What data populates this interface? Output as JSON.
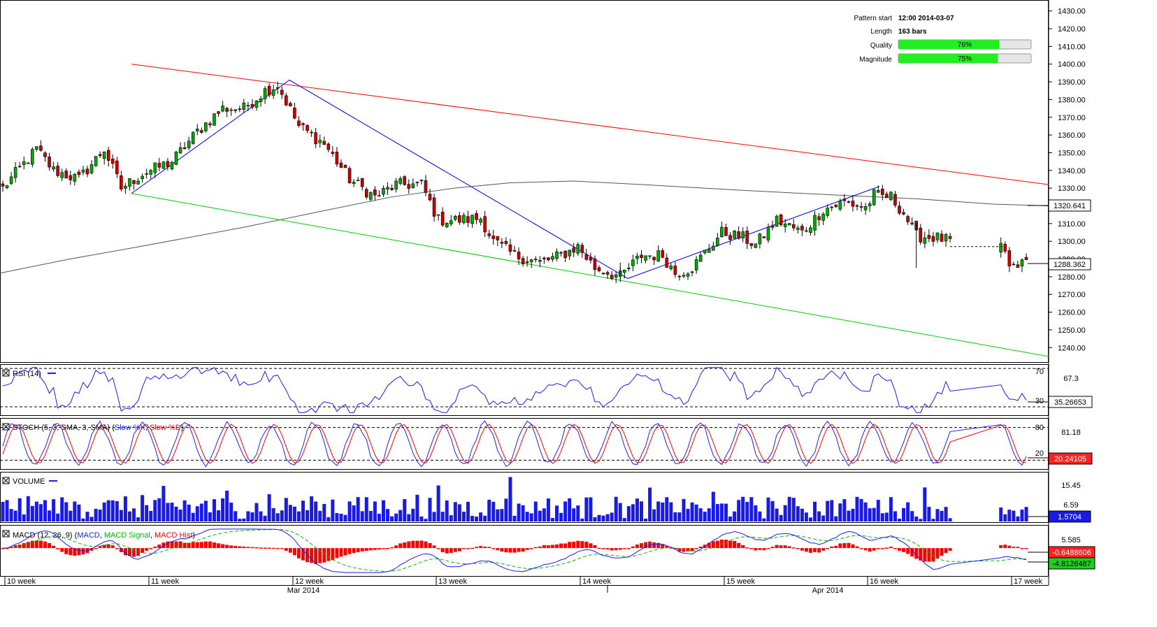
{
  "info": {
    "pattern_start_label": "Pattern start",
    "pattern_start_value": "12:00 2014-03-07",
    "length_label": "Length",
    "length_value": "163 bars",
    "quality_label": "Quality",
    "quality_value": "76%",
    "quality_fraction": 0.76,
    "magnitude_label": "Magnitude",
    "magnitude_value": "75%",
    "magnitude_fraction": 0.75
  },
  "colors": {
    "up_candle": "#00aa00",
    "down_candle": "#cc0000",
    "upper_trend": "#ff0000",
    "lower_trend": "#00cc00",
    "zigzag": "#0000ff",
    "sma": "#555555",
    "rsi_line": "#1a1aff",
    "stoch_k": "#2020ff",
    "stoch_d": "#ff0000",
    "volume": "#1a1ae6",
    "macd_line": "#1a1aff",
    "macd_signal": "#00bb00",
    "macd_hist": "#ff0000",
    "bar_fill": "#22ee22"
  },
  "chart_data": [
    {
      "type": "candlestick",
      "panel": "price",
      "ylim": [
        1233,
        1435
      ],
      "y_ticks": [
        "1430.00",
        "1420.00",
        "1410.00",
        "1400.00",
        "1390.00",
        "1380.00",
        "1370.00",
        "1360.00",
        "1350.00",
        "1340.00",
        "1330.00",
        "1320.00",
        "1310.00",
        "1300.00",
        "1290.00",
        "1280.00",
        "1270.00",
        "1260.00",
        "1250.00",
        "1240.00"
      ],
      "x_ticks": [
        "10 week",
        "11 week",
        "12 week",
        "13 week",
        "14 week",
        "15 week",
        "16 week",
        "17 week"
      ],
      "x_month_labels": [
        "Mar 2014",
        "Apr 2014"
      ],
      "price_tags": [
        "1320.641",
        "1288.362"
      ],
      "anchors": [
        [
          0,
          1330
        ],
        [
          8,
          1352
        ],
        [
          12,
          1340
        ],
        [
          18,
          1335
        ],
        [
          24,
          1352
        ],
        [
          28,
          1330
        ],
        [
          33,
          1338
        ],
        [
          40,
          1345
        ],
        [
          46,
          1362
        ],
        [
          52,
          1375
        ],
        [
          57,
          1375
        ],
        [
          62,
          1385
        ],
        [
          65,
          1388
        ],
        [
          70,
          1365
        ],
        [
          76,
          1355
        ],
        [
          82,
          1335
        ],
        [
          88,
          1325
        ],
        [
          93,
          1332
        ],
        [
          99,
          1332
        ],
        [
          103,
          1312
        ],
        [
          108,
          1312
        ],
        [
          113,
          1313
        ],
        [
          116,
          1300
        ],
        [
          121,
          1292
        ],
        [
          127,
          1288
        ],
        [
          132,
          1292
        ],
        [
          136,
          1297
        ],
        [
          140,
          1285
        ],
        [
          146,
          1280
        ],
        [
          151,
          1292
        ],
        [
          156,
          1292
        ],
        [
          159,
          1282
        ],
        [
          163,
          1285
        ],
        [
          170,
          1305
        ],
        [
          175,
          1302
        ],
        [
          178,
          1298
        ],
        [
          183,
          1312
        ],
        [
          189,
          1305
        ],
        [
          194,
          1318
        ],
        [
          199,
          1322
        ],
        [
          204,
          1319
        ],
        [
          206,
          1326
        ],
        [
          210,
          1325
        ],
        [
          213,
          1316
        ],
        [
          216,
          1303
        ],
        [
          221,
          1302
        ],
        [
          224,
          1300
        ],
        [
          229,
          1297
        ],
        [
          236,
          1296
        ],
        [
          239,
          1286
        ],
        [
          242,
          1288
        ]
      ],
      "upper_trend": [
        [
          1400,
          188
        ],
        [
          1332,
          1500
        ]
      ],
      "lower_trend": [
        [
          1327,
          188
        ],
        [
          1235,
          1500
        ]
      ],
      "zigzag": [
        [
          1327,
          188
        ],
        [
          1391,
          414
        ],
        [
          1279,
          898
        ],
        [
          1331,
          1258
        ]
      ],
      "sma": [
        [
          1282,
          0
        ],
        [
          1290,
          100
        ],
        [
          1297,
          200
        ],
        [
          1308,
          350
        ],
        [
          1317,
          460
        ],
        [
          1325,
          560
        ],
        [
          1330,
          650
        ],
        [
          1333,
          730
        ],
        [
          1334,
          820
        ],
        [
          1332,
          920
        ],
        [
          1329,
          1050
        ],
        [
          1326,
          1200
        ],
        [
          1324,
          1310
        ],
        [
          1321,
          1420
        ],
        [
          1320,
          1500
        ]
      ]
    },
    {
      "type": "line",
      "panel": "rsi",
      "legend": "RSI (14)",
      "y_tick_labels": [
        "70",
        "67.3",
        "30"
      ],
      "current_value": "35.26653",
      "ylim": [
        22,
        73
      ],
      "levels": [
        70,
        30
      ]
    },
    {
      "type": "line",
      "panel": "stochastic",
      "legend_prefix": "STOCH (5, 3, SMA, 3, SMA)",
      "series": [
        {
          "name": "Slow %K"
        },
        {
          "name": "Slow %D"
        }
      ],
      "y_tick_labels": [
        "80",
        "81.18",
        "20"
      ],
      "current_value": "20.24105",
      "ylim": [
        5,
        95
      ],
      "levels": [
        80,
        20
      ]
    },
    {
      "type": "bar",
      "panel": "volume",
      "legend": "VOLUME",
      "y_tick_labels": [
        "15.45",
        "6.59"
      ],
      "current_value": "1.5704",
      "ylim": [
        0,
        19
      ]
    },
    {
      "type": "line",
      "panel": "macd",
      "legend_prefix": "MACD (12, 26, 9)",
      "series": [
        {
          "name": "MACD"
        },
        {
          "name": "MACD Signal"
        },
        {
          "name": "MACD Hist"
        }
      ],
      "y_tick_labels": [
        "5.585"
      ],
      "current_values": [
        "-0.6488606",
        "-4.8126487"
      ],
      "ylim": [
        -10,
        8
      ]
    }
  ]
}
